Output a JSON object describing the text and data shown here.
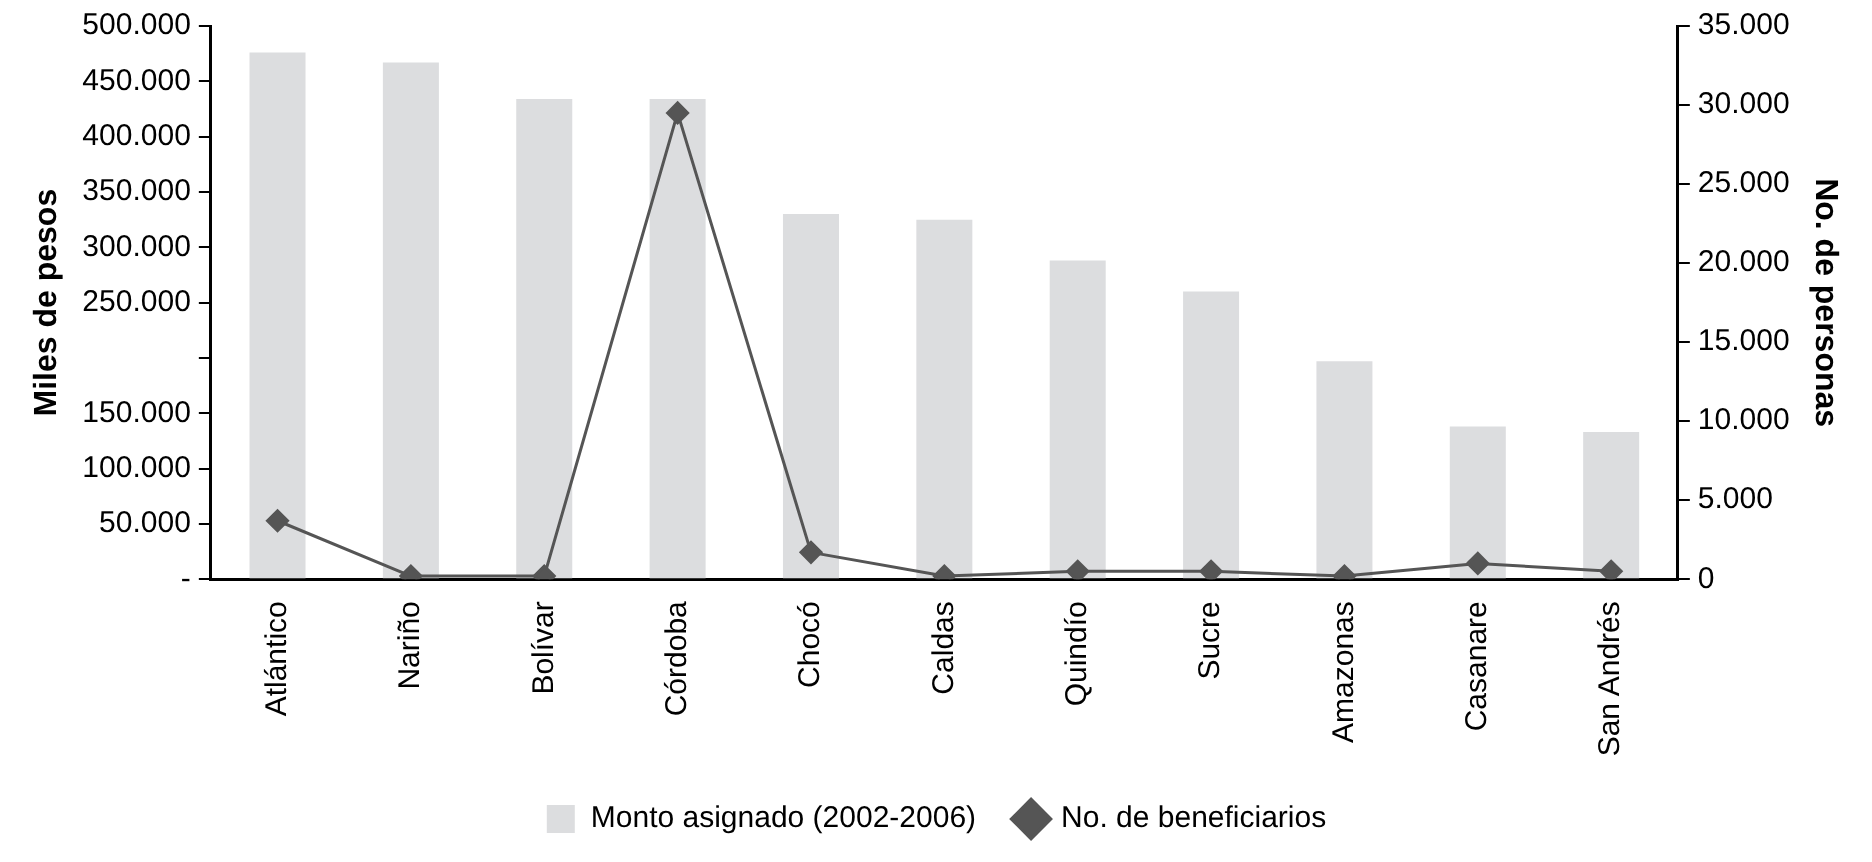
{
  "chart_data": {
    "type": "bar",
    "categories": [
      "Atlántico",
      "Nariño",
      "Bolívar",
      "Córdoba",
      "Chocó",
      "Caldas",
      "Quindío",
      "Sucre",
      "Amazonas",
      "Casanare",
      "San Andrés"
    ],
    "series": [
      {
        "name": "Monto asignado (2002-2006)",
        "color": "#dcdddf",
        "values": [
          476000,
          467000,
          434000,
          434000,
          330000,
          325000,
          288000,
          260000,
          197000,
          138000,
          133000
        ]
      },
      {
        "name": "No. de beneficiarios",
        "type": "line",
        "axis": "y2",
        "color": "#555555",
        "marker": "diamond",
        "values": [
          3700,
          200,
          200,
          29500,
          1700,
          200,
          500,
          500,
          200,
          1000,
          500
        ]
      }
    ],
    "ylabel": "Miles de pesos",
    "y2label": "No. de personas",
    "ylim": [
      0,
      500000
    ],
    "yticks": [
      {
        "value": 0,
        "label": "-"
      },
      {
        "value": 50000,
        "label": "50.000"
      },
      {
        "value": 100000,
        "label": "100.000"
      },
      {
        "value": 150000,
        "label": "150.000"
      },
      {
        "value": 200000,
        "label": null
      },
      {
        "value": 250000,
        "label": "250.000"
      },
      {
        "value": 300000,
        "label": "300.000"
      },
      {
        "value": 350000,
        "label": "350.000"
      },
      {
        "value": 400000,
        "label": "400.000"
      },
      {
        "value": 450000,
        "label": "450.000"
      },
      {
        "value": 500000,
        "label": "500.000"
      }
    ],
    "y2lim": [
      0,
      35000
    ],
    "y2ticks": [
      {
        "value": 0,
        "label": "0"
      },
      {
        "value": 5000,
        "label": "5.000"
      },
      {
        "value": 10000,
        "label": "10.000"
      },
      {
        "value": 15000,
        "label": "15.000"
      },
      {
        "value": 20000,
        "label": "20.000"
      },
      {
        "value": 25000,
        "label": "25.000"
      },
      {
        "value": 30000,
        "label": "30.000"
      },
      {
        "value": 35000,
        "label": "35.000"
      }
    ],
    "grid": false,
    "legend": "bottom"
  }
}
